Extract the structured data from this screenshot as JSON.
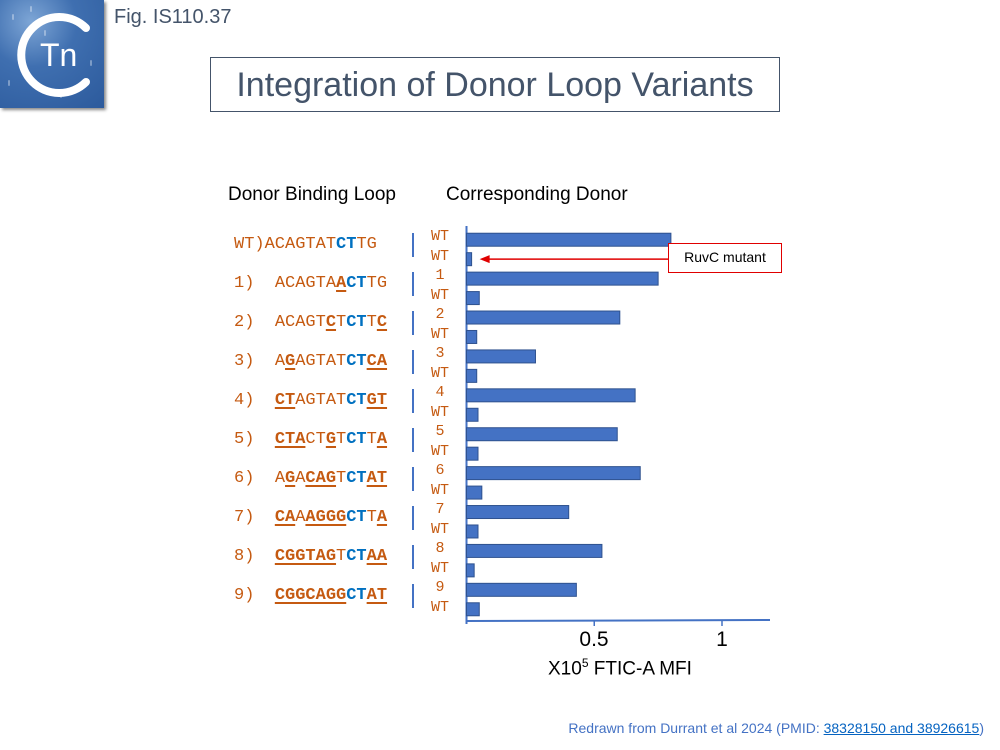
{
  "header": {
    "logo_text": "Tn",
    "fig_label": "Fig. IS110.37",
    "title": "Integration of Donor Loop Variants"
  },
  "columns": {
    "left": "Donor Binding Loop",
    "right": "Corresponding Donor"
  },
  "sequences": [
    {
      "label": "WT)",
      "parts": [
        [
          "p",
          "ACAGTAT"
        ],
        [
          "c",
          "CT"
        ],
        [
          "p",
          "TG"
        ]
      ]
    },
    {
      "label": "1) ",
      "parts": [
        [
          "p",
          "ACAGTA"
        ],
        [
          "m",
          "A"
        ],
        [
          "c",
          "CT"
        ],
        [
          "p",
          "TG"
        ]
      ]
    },
    {
      "label": "2) ",
      "parts": [
        [
          "p",
          "ACAGT"
        ],
        [
          "m",
          "C"
        ],
        [
          "p",
          "T"
        ],
        [
          "c",
          "CT"
        ],
        [
          "p",
          "T"
        ],
        [
          "m",
          "C"
        ]
      ]
    },
    {
      "label": "3) ",
      "parts": [
        [
          "p",
          "A"
        ],
        [
          "m",
          "G"
        ],
        [
          "p",
          "AGTAT"
        ],
        [
          "c",
          "CT"
        ],
        [
          "m",
          "CA"
        ]
      ]
    },
    {
      "label": "4) ",
      "parts": [
        [
          "m",
          "CT"
        ],
        [
          "p",
          "AGTAT"
        ],
        [
          "c",
          "CT"
        ],
        [
          "m",
          "GT"
        ]
      ]
    },
    {
      "label": "5) ",
      "parts": [
        [
          "m",
          "CTA"
        ],
        [
          "p",
          "CT"
        ],
        [
          "m",
          "G"
        ],
        [
          "p",
          "T"
        ],
        [
          "c",
          "CT"
        ],
        [
          "p",
          "T"
        ],
        [
          "m",
          "A"
        ]
      ]
    },
    {
      "label": "6) ",
      "parts": [
        [
          "p",
          "A"
        ],
        [
          "m",
          "G"
        ],
        [
          "p",
          "A"
        ],
        [
          "m",
          "CAG"
        ],
        [
          "p",
          "T"
        ],
        [
          "c",
          "CT"
        ],
        [
          "m",
          "AT"
        ]
      ]
    },
    {
      "label": "7) ",
      "parts": [
        [
          "m",
          "CA"
        ],
        [
          "p",
          "A"
        ],
        [
          "m",
          "AGGG"
        ],
        [
          "c",
          "CT"
        ],
        [
          "p",
          "T"
        ],
        [
          "m",
          "A"
        ]
      ]
    },
    {
      "label": "8) ",
      "parts": [
        [
          "m",
          "CGGTAG"
        ],
        [
          "p",
          "T"
        ],
        [
          "c",
          "CT"
        ],
        [
          "m",
          "AA"
        ]
      ]
    },
    {
      "label": "9) ",
      "parts": [
        [
          "m",
          "CGGCAGG"
        ],
        [
          "c",
          "CT"
        ],
        [
          "m",
          "AT"
        ]
      ]
    }
  ],
  "callout": {
    "text": "RuvC mutant"
  },
  "footer": {
    "prefix": "Redrawn from Durrant et al 2024 (PMID: ",
    "link_text": "38328150 and 38926615",
    "suffix": ")"
  },
  "colors": {
    "bar": "#4472c4",
    "bar_border": "#2f528f",
    "sequence": "#c55a11",
    "conserved": "#0070c0",
    "callout": "#e00000",
    "title": "#44546a"
  },
  "chart_data": {
    "type": "bar",
    "orientation": "horizontal",
    "title": "Integration of Donor Loop Variants",
    "xlabel": "X10^5 FTIC-A MFI",
    "xlabel_base": "X10",
    "xlabel_exp": "5",
    "xlabel_rest": " FTIC-A MFI",
    "ylabel": "Corresponding Donor",
    "xlim": [
      0,
      1.2
    ],
    "xticks": [
      0.5,
      1
    ],
    "xtick_labels": [
      "0.5",
      "1"
    ],
    "grid": false,
    "categories": [
      "WT",
      "WT",
      "1",
      "WT",
      "2",
      "WT",
      "3",
      "WT",
      "4",
      "WT",
      "5",
      "WT",
      "6",
      "WT",
      "7",
      "WT",
      "8",
      "WT",
      "9",
      "WT"
    ],
    "values": [
      0.8,
      0.02,
      0.75,
      0.05,
      0.6,
      0.04,
      0.27,
      0.04,
      0.66,
      0.045,
      0.59,
      0.045,
      0.68,
      0.06,
      0.4,
      0.045,
      0.53,
      0.03,
      0.43,
      0.05
    ],
    "annotations": [
      {
        "text": "RuvC mutant",
        "target_index": 1
      }
    ]
  }
}
